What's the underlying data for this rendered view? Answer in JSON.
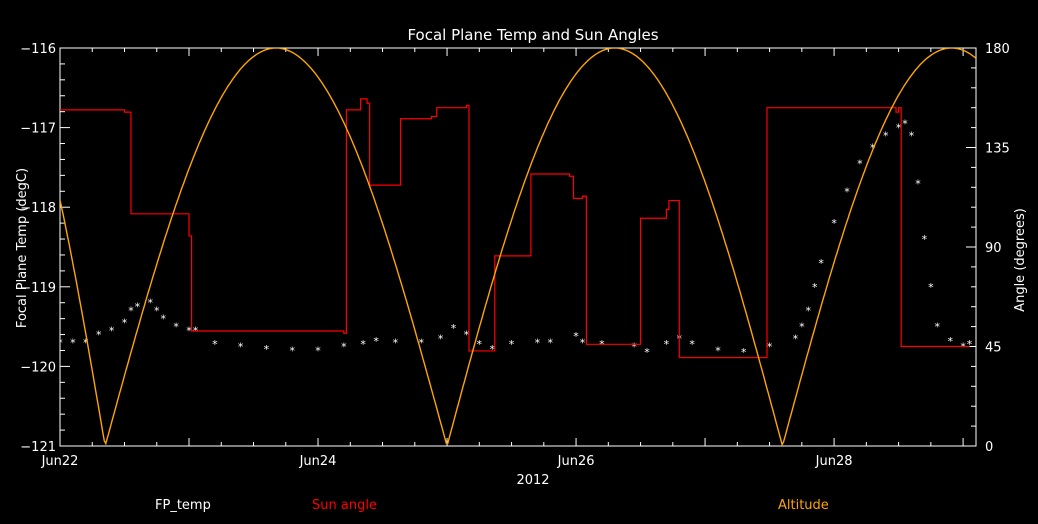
{
  "chart_data": {
    "type": "line",
    "title": "Focal Plane Temp and Sun Angles",
    "xlabel": "2012",
    "ylabel_left": "Focal Plane Temp (degC)",
    "ylabel_right": "Angle (degrees)",
    "x_range": [
      0,
      7.1
    ],
    "x_ticks": [
      {
        "x": 0,
        "label": "Jun22"
      },
      {
        "x": 2,
        "label": "Jun24"
      },
      {
        "x": 4,
        "label": "Jun26"
      },
      {
        "x": 6,
        "label": "Jun28"
      }
    ],
    "ylim_left": [
      -121,
      -116
    ],
    "yticks_left": [
      -121,
      -120,
      -119,
      -118,
      -117,
      -116
    ],
    "ylim_right": [
      0,
      180
    ],
    "yticks_right": [
      0,
      45,
      90,
      135,
      180
    ],
    "series": [
      {
        "name": "FP_temp",
        "color": "#ffffff",
        "axis": "left",
        "style": "scatter",
        "points": [
          [
            0.0,
            -119.7
          ],
          [
            0.1,
            -119.7
          ],
          [
            0.2,
            -119.7
          ],
          [
            0.3,
            -119.6
          ],
          [
            0.4,
            -119.55
          ],
          [
            0.5,
            -119.45
          ],
          [
            0.55,
            -119.3
          ],
          [
            0.6,
            -119.25
          ],
          [
            0.7,
            -119.2
          ],
          [
            0.75,
            -119.3
          ],
          [
            0.8,
            -119.4
          ],
          [
            0.9,
            -119.5
          ],
          [
            1.0,
            -119.55
          ],
          [
            1.05,
            -119.55
          ],
          [
            1.2,
            -119.72
          ],
          [
            1.4,
            -119.75
          ],
          [
            1.6,
            -119.78
          ],
          [
            1.8,
            -119.8
          ],
          [
            2.0,
            -119.8
          ],
          [
            2.2,
            -119.75
          ],
          [
            2.35,
            -119.72
          ],
          [
            2.45,
            -119.68
          ],
          [
            2.6,
            -119.7
          ],
          [
            2.8,
            -119.7
          ],
          [
            2.95,
            -119.65
          ],
          [
            3.05,
            -119.52
          ],
          [
            3.15,
            -119.6
          ],
          [
            3.25,
            -119.72
          ],
          [
            3.35,
            -119.78
          ],
          [
            3.5,
            -119.72
          ],
          [
            3.7,
            -119.7
          ],
          [
            3.8,
            -119.7
          ],
          [
            4.0,
            -119.62
          ],
          [
            4.05,
            -119.7
          ],
          [
            4.2,
            -119.72
          ],
          [
            4.45,
            -119.75
          ],
          [
            4.55,
            -119.82
          ],
          [
            4.7,
            -119.72
          ],
          [
            4.8,
            -119.65
          ],
          [
            4.9,
            -119.72
          ],
          [
            5.1,
            -119.8
          ],
          [
            5.3,
            -119.82
          ],
          [
            5.5,
            -119.75
          ],
          [
            5.7,
            -119.65
          ],
          [
            5.75,
            -119.5
          ],
          [
            5.8,
            -119.3
          ],
          [
            5.85,
            -119.0
          ],
          [
            5.9,
            -118.7
          ],
          [
            6.0,
            -118.2
          ],
          [
            6.1,
            -117.8
          ],
          [
            6.2,
            -117.45
          ],
          [
            6.3,
            -117.25
          ],
          [
            6.4,
            -117.1
          ],
          [
            6.5,
            -117.0
          ],
          [
            6.55,
            -116.95
          ],
          [
            6.6,
            -117.1
          ],
          [
            6.65,
            -117.7
          ],
          [
            6.7,
            -118.4
          ],
          [
            6.75,
            -119.0
          ],
          [
            6.8,
            -119.5
          ],
          [
            6.9,
            -119.68
          ],
          [
            7.0,
            -119.75
          ],
          [
            7.05,
            -119.72
          ]
        ]
      },
      {
        "name": "Sun angle",
        "color": "#ff0000",
        "axis": "right",
        "style": "step",
        "points": [
          [
            0.0,
            152
          ],
          [
            0.5,
            151
          ],
          [
            0.55,
            105
          ],
          [
            0.98,
            105
          ],
          [
            1.0,
            95
          ],
          [
            1.02,
            52
          ],
          [
            2.2,
            51
          ],
          [
            2.22,
            152
          ],
          [
            2.33,
            157
          ],
          [
            2.38,
            155
          ],
          [
            2.4,
            118
          ],
          [
            2.62,
            118
          ],
          [
            2.64,
            148
          ],
          [
            2.88,
            149
          ],
          [
            2.92,
            153
          ],
          [
            3.15,
            154
          ],
          [
            3.17,
            43
          ],
          [
            3.35,
            43
          ],
          [
            3.37,
            86
          ],
          [
            3.62,
            86
          ],
          [
            3.65,
            123
          ],
          [
            3.95,
            122
          ],
          [
            3.98,
            112
          ],
          [
            4.05,
            113
          ],
          [
            4.08,
            46
          ],
          [
            4.48,
            46
          ],
          [
            4.5,
            103
          ],
          [
            4.68,
            103
          ],
          [
            4.7,
            107
          ],
          [
            4.72,
            111
          ],
          [
            4.78,
            111
          ],
          [
            4.8,
            40
          ],
          [
            5.45,
            40
          ],
          [
            5.48,
            153
          ],
          [
            6.48,
            151
          ],
          [
            6.5,
            153
          ],
          [
            6.52,
            45
          ],
          [
            7.05,
            45
          ]
        ]
      },
      {
        "name": "Altitude",
        "color": "#ffa500",
        "axis": "right",
        "style": "line",
        "peaks": [
          1.68,
          4.3,
          6.92
        ],
        "zeros": [
          0.35,
          3.0,
          5.6
        ]
      }
    ]
  },
  "legend": {
    "fp": "FP_temp",
    "sun": "Sun angle",
    "alt": "Altitude"
  }
}
